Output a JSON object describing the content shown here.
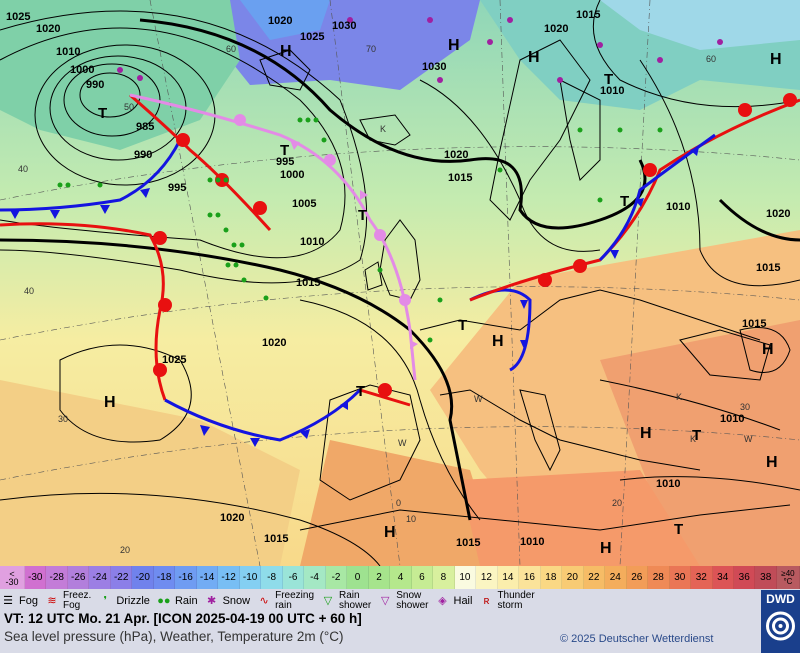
{
  "map": {
    "pressure_labels": [
      "1025",
      "1020",
      "1010",
      "1000",
      "990",
      "985",
      "990",
      "995",
      "995",
      "1000",
      "1005",
      "1010",
      "1015",
      "1020",
      "1025",
      "1020",
      "1025",
      "1030",
      "1030",
      "1020",
      "1010",
      "1015",
      "1015",
      "1020",
      "1010",
      "1020",
      "1015",
      "1015",
      "1010",
      "1010",
      "1020",
      "1015",
      "1015",
      "1010"
    ],
    "high_labels": [
      "H",
      "H",
      "H",
      "H",
      "H",
      "H",
      "H",
      "H",
      "H",
      "H",
      "H"
    ],
    "low_labels": [
      "T",
      "T",
      "T",
      "T",
      "T",
      "T",
      "T",
      "T",
      "T"
    ],
    "small_labels": [
      "40",
      "50",
      "30",
      "20",
      "40",
      "30",
      "0",
      "10",
      "K",
      "K",
      "W",
      "W",
      "K",
      "W",
      "60",
      "70",
      "60",
      "0",
      "20"
    ]
  },
  "scale": {
    "first_top": "<",
    "first_bottom": "-30",
    "values": [
      "-30",
      "-28",
      "-26",
      "-24",
      "-22",
      "-20",
      "-18",
      "-16",
      "-14",
      "-12",
      "-10",
      "-8",
      "-6",
      "-4",
      "-2",
      "0",
      "2",
      "4",
      "6",
      "8",
      "10",
      "12",
      "14",
      "16",
      "18",
      "20",
      "22",
      "24",
      "26",
      "28",
      "30",
      "32",
      "34",
      "36",
      "38"
    ],
    "last_top": "≥40",
    "last_bottom": "°C",
    "colors": [
      "#d070d0",
      "#c37cd8",
      "#b27fdc",
      "#9c7fe4",
      "#8b7fe8",
      "#7082ec",
      "#6f8cf0",
      "#6f9cf2",
      "#72acf4",
      "#78bef4",
      "#84cff2",
      "#8fdcea",
      "#9ae4d8",
      "#a4e8c4",
      "#a8e8a4",
      "#9ee290",
      "#a6e48c",
      "#b5e88c",
      "#c6ec94",
      "#d8f09e",
      "#fafbe0",
      "#fbf5c2",
      "#fbeeac",
      "#fbe39a",
      "#fad884",
      "#f8cb74",
      "#f6bc66",
      "#f4ad5c",
      "#f29d58",
      "#ef8a56",
      "#ea7656",
      "#e46456",
      "#dc5456",
      "#d04a56",
      "#c04c58"
    ]
  },
  "legend": [
    {
      "icon": "fog-icon",
      "label": "Fog"
    },
    {
      "icon": "freezing-fog-icon",
      "label": "Freez.\nFog"
    },
    {
      "icon": "drizzle-icon",
      "label": "Drizzle"
    },
    {
      "icon": "rain-icon",
      "label": "Rain"
    },
    {
      "icon": "snow-icon",
      "label": "Snow"
    },
    {
      "icon": "freezing-rain-icon",
      "label": "Freezing\nrain"
    },
    {
      "icon": "rain-shower-icon",
      "label": "Rain\nshower"
    },
    {
      "icon": "snow-shower-icon",
      "label": "Snow\nshower"
    },
    {
      "icon": "hail-icon",
      "label": "Hail"
    },
    {
      "icon": "thunderstorm-icon",
      "label": "Thunder\nstorm"
    }
  ],
  "footer": {
    "valid_time": "VT: 12 UTC Mo.  21 Apr. [ICON 2025-04-19  00 UTC + 60 h]",
    "subtitle": "Sea level pressure (hPa), Weather, Temperature 2m (°C)",
    "copyright": "© 2025 Deutscher Wetterdienst",
    "logo_text": "DWD"
  },
  "colors": {
    "warm_front": "#e81010",
    "cold_front": "#1414e0",
    "occluded_front": "#e38be6",
    "isobar": "#000000",
    "rain_dot": "#1aa01a",
    "snow": "#a020a0"
  }
}
